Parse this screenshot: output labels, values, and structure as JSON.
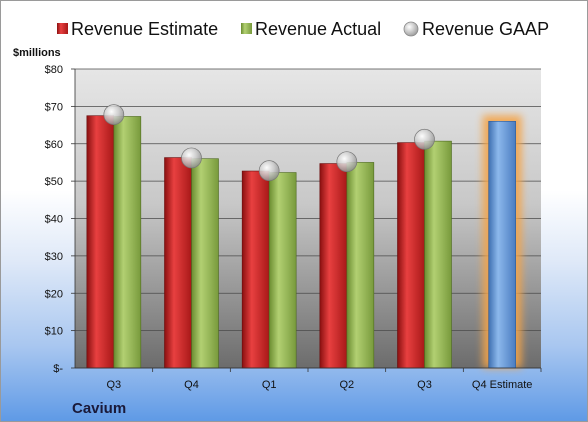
{
  "company": "Cavium",
  "colors": {
    "estimate": "#cc2020",
    "actual": "#8db04a",
    "future_estimate": "#5a8fd0",
    "glow": "#f4a44a",
    "gaap_marker": "#b8b8b8"
  },
  "chart_data": {
    "type": "bar",
    "ylabel": "$millions",
    "ylim": [
      0,
      80
    ],
    "yticks": [
      0,
      10,
      20,
      30,
      40,
      50,
      60,
      70,
      80
    ],
    "ytick_labels": [
      "$-",
      "$10",
      "$20",
      "$30",
      "$40",
      "$50",
      "$60",
      "$70",
      "$80"
    ],
    "categories": [
      "Q3",
      "Q4",
      "Q1",
      "Q2",
      "Q3",
      "Q4 Estimate"
    ],
    "grid": true,
    "legend_position": "top",
    "series": [
      {
        "name": "Revenue Estimate",
        "kind": "bar",
        "values": [
          67.5,
          56.3,
          52.7,
          54.7,
          60.3,
          66.0
        ]
      },
      {
        "name": "Revenue Actual",
        "kind": "bar",
        "values": [
          67.3,
          56.0,
          52.3,
          55.0,
          60.7,
          null
        ]
      },
      {
        "name": "Revenue GAAP",
        "kind": "marker",
        "values": [
          67.8,
          56.2,
          52.8,
          55.2,
          61.2,
          null
        ]
      }
    ]
  }
}
